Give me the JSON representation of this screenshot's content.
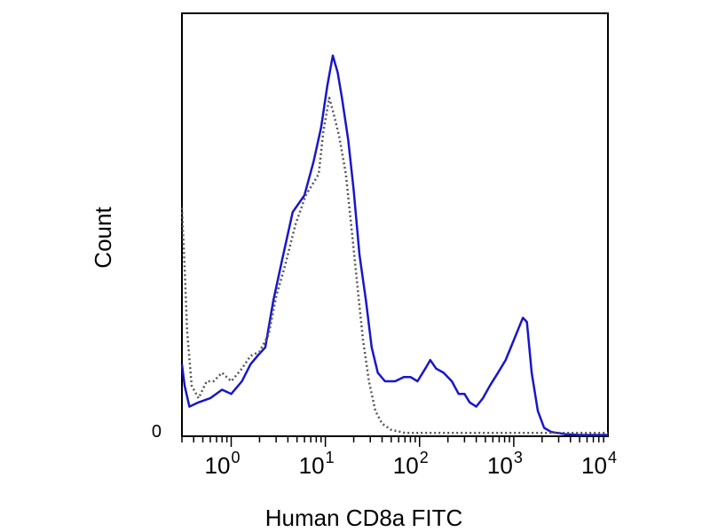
{
  "chart_data": {
    "type": "line",
    "title": "",
    "xlabel": "Human CD8a FITC",
    "ylabel": "Count",
    "x_scale": "log",
    "xlim": [
      0.3,
      10000
    ],
    "ylim": [
      0,
      100
    ],
    "y_zero_label": "0",
    "x_ticks": [
      {
        "value": 1,
        "base": "10",
        "exp": "0"
      },
      {
        "value": 10,
        "base": "10",
        "exp": "1"
      },
      {
        "value": 100,
        "base": "10",
        "exp": "2"
      },
      {
        "value": 1000,
        "base": "10",
        "exp": "3"
      },
      {
        "value": 10000,
        "base": "10",
        "exp": "4"
      }
    ],
    "grid": false,
    "legend": "none",
    "series": [
      {
        "color": "#1a16c8",
        "style": "solid",
        "points": [
          [
            0.3,
            17
          ],
          [
            0.32,
            12
          ],
          [
            0.36,
            7
          ],
          [
            0.45,
            8
          ],
          [
            0.6,
            9
          ],
          [
            0.8,
            11
          ],
          [
            1.0,
            10
          ],
          [
            1.3,
            13
          ],
          [
            1.6,
            17
          ],
          [
            1.9,
            19
          ],
          [
            2.3,
            21
          ],
          [
            2.8,
            32
          ],
          [
            3.5,
            42
          ],
          [
            4.5,
            53
          ],
          [
            6.0,
            57
          ],
          [
            7.5,
            65
          ],
          [
            9.0,
            73
          ],
          [
            10.5,
            83
          ],
          [
            12.0,
            90
          ],
          [
            13.5,
            86
          ],
          [
            15.0,
            80
          ],
          [
            17.5,
            70
          ],
          [
            20.0,
            58
          ],
          [
            23.0,
            43
          ],
          [
            27.0,
            32
          ],
          [
            31.0,
            21
          ],
          [
            36.0,
            15
          ],
          [
            43.0,
            13
          ],
          [
            55.0,
            13
          ],
          [
            68.0,
            14
          ],
          [
            80.0,
            14
          ],
          [
            95.0,
            13
          ],
          [
            115.0,
            16
          ],
          [
            130.0,
            18
          ],
          [
            150.0,
            16
          ],
          [
            180.0,
            15
          ],
          [
            220.0,
            13
          ],
          [
            260.0,
            10
          ],
          [
            300.0,
            10
          ],
          [
            340.0,
            8
          ],
          [
            400.0,
            7
          ],
          [
            470.0,
            9
          ],
          [
            560.0,
            12
          ],
          [
            680.0,
            15
          ],
          [
            820.0,
            18
          ],
          [
            970.0,
            22
          ],
          [
            1100.0,
            25
          ],
          [
            1250.0,
            28
          ],
          [
            1380.0,
            27
          ],
          [
            1550.0,
            15
          ],
          [
            1800.0,
            6
          ],
          [
            2100.0,
            2
          ],
          [
            2500.0,
            1
          ],
          [
            3500.0,
            0.5
          ],
          [
            5000.0,
            0.3
          ],
          [
            10000.0,
            0.3
          ]
        ]
      },
      {
        "color": "#555555",
        "style": "dotted",
        "points": [
          [
            0.3,
            54
          ],
          [
            0.32,
            40
          ],
          [
            0.34,
            25
          ],
          [
            0.38,
            12
          ],
          [
            0.45,
            9
          ],
          [
            0.55,
            13
          ],
          [
            0.65,
            13
          ],
          [
            0.8,
            15
          ],
          [
            1.0,
            13
          ],
          [
            1.3,
            16
          ],
          [
            1.6,
            19
          ],
          [
            2.0,
            20
          ],
          [
            2.5,
            24
          ],
          [
            3.0,
            33
          ],
          [
            3.8,
            41
          ],
          [
            4.8,
            50
          ],
          [
            6.2,
            57
          ],
          [
            7.5,
            60
          ],
          [
            8.5,
            62
          ],
          [
            9.5,
            72
          ],
          [
            11.0,
            80
          ],
          [
            12.0,
            77
          ],
          [
            14.0,
            71
          ],
          [
            16.5,
            62
          ],
          [
            19.0,
            49
          ],
          [
            22.0,
            35
          ],
          [
            25.0,
            23
          ],
          [
            29.0,
            13
          ],
          [
            34.0,
            6
          ],
          [
            40.0,
            3
          ],
          [
            50.0,
            1.5
          ],
          [
            70.0,
            0.8
          ],
          [
            150.0,
            0.8
          ],
          [
            500.0,
            0.8
          ],
          [
            2000.0,
            0.8
          ],
          [
            10000.0,
            0.8
          ]
        ]
      }
    ]
  }
}
